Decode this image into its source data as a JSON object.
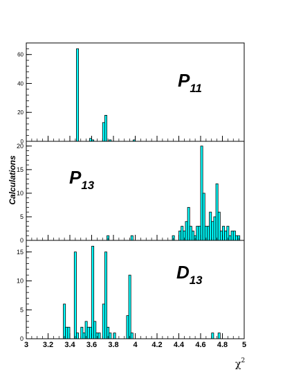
{
  "chart_data": {
    "type": "histogram",
    "xlabel": "χ",
    "xlabel_superscript": "2",
    "ylabel": "Calculations",
    "x_range": [
      3,
      5
    ],
    "bin_width": 0.02,
    "x_major_ticks": [
      3,
      3.2,
      3.4,
      3.6,
      3.8,
      4,
      4.2,
      4.4,
      4.6,
      4.8,
      5
    ],
    "x_tick_labels": [
      "3",
      "3.2",
      "3.4",
      "3.6",
      "3.8",
      "4",
      "4.2",
      "4.4",
      "4.6",
      "4.8",
      "5"
    ],
    "bar_color": "#00ffff",
    "edge_color": "#000000",
    "panels": [
      {
        "label_main": "P",
        "label_sub": "11",
        "ylim": [
          0,
          68
        ],
        "y_ticks": [
          0,
          20,
          40,
          60
        ],
        "y_tick_labels": [
          "0",
          "20",
          "40",
          "60"
        ],
        "bins": [
          {
            "x": 3.46,
            "count": 64
          },
          {
            "x": 3.58,
            "count": 2
          },
          {
            "x": 3.6,
            "count": 1
          },
          {
            "x": 3.7,
            "count": 13
          },
          {
            "x": 3.72,
            "count": 18
          },
          {
            "x": 3.76,
            "count": 1
          },
          {
            "x": 3.98,
            "count": 1
          }
        ]
      },
      {
        "label_main": "P",
        "label_sub": "13",
        "ylim": [
          0,
          21
        ],
        "y_ticks": [
          0,
          5,
          10,
          15,
          20
        ],
        "y_tick_labels": [
          "0",
          "5",
          "10",
          "15",
          "20"
        ],
        "bins": [
          {
            "x": 3.74,
            "count": 1
          },
          {
            "x": 3.96,
            "count": 1
          },
          {
            "x": 4.34,
            "count": 1
          },
          {
            "x": 4.4,
            "count": 2
          },
          {
            "x": 4.42,
            "count": 3
          },
          {
            "x": 4.44,
            "count": 2
          },
          {
            "x": 4.46,
            "count": 4
          },
          {
            "x": 4.48,
            "count": 7
          },
          {
            "x": 4.5,
            "count": 3
          },
          {
            "x": 4.52,
            "count": 2
          },
          {
            "x": 4.54,
            "count": 1
          },
          {
            "x": 4.56,
            "count": 3
          },
          {
            "x": 4.58,
            "count": 3
          },
          {
            "x": 4.6,
            "count": 20
          },
          {
            "x": 4.62,
            "count": 10
          },
          {
            "x": 4.64,
            "count": 3
          },
          {
            "x": 4.66,
            "count": 3
          },
          {
            "x": 4.68,
            "count": 6
          },
          {
            "x": 4.7,
            "count": 4
          },
          {
            "x": 4.72,
            "count": 5
          },
          {
            "x": 4.74,
            "count": 12
          },
          {
            "x": 4.76,
            "count": 6
          },
          {
            "x": 4.78,
            "count": 2
          },
          {
            "x": 4.8,
            "count": 3
          },
          {
            "x": 4.82,
            "count": 2
          },
          {
            "x": 4.84,
            "count": 3
          },
          {
            "x": 4.86,
            "count": 1
          },
          {
            "x": 4.88,
            "count": 2
          },
          {
            "x": 4.9,
            "count": 2
          },
          {
            "x": 4.92,
            "count": 1
          },
          {
            "x": 4.94,
            "count": 1
          }
        ]
      },
      {
        "label_main": "D",
        "label_sub": "13",
        "ylim": [
          0,
          17
        ],
        "y_ticks": [
          0,
          5,
          10,
          15
        ],
        "y_tick_labels": [
          "0",
          "5",
          "10",
          "15"
        ],
        "bins": [
          {
            "x": 3.34,
            "count": 6
          },
          {
            "x": 3.36,
            "count": 2
          },
          {
            "x": 3.38,
            "count": 2
          },
          {
            "x": 3.44,
            "count": 15
          },
          {
            "x": 3.46,
            "count": 1
          },
          {
            "x": 3.5,
            "count": 2
          },
          {
            "x": 3.52,
            "count": 1
          },
          {
            "x": 3.54,
            "count": 3
          },
          {
            "x": 3.56,
            "count": 2
          },
          {
            "x": 3.58,
            "count": 2
          },
          {
            "x": 3.6,
            "count": 16
          },
          {
            "x": 3.62,
            "count": 3
          },
          {
            "x": 3.64,
            "count": 1
          },
          {
            "x": 3.66,
            "count": 1
          },
          {
            "x": 3.7,
            "count": 6
          },
          {
            "x": 3.72,
            "count": 15
          },
          {
            "x": 3.74,
            "count": 2
          },
          {
            "x": 3.76,
            "count": 1
          },
          {
            "x": 3.8,
            "count": 1
          },
          {
            "x": 3.92,
            "count": 4
          },
          {
            "x": 3.94,
            "count": 11
          },
          {
            "x": 3.96,
            "count": 1
          },
          {
            "x": 4.7,
            "count": 1
          },
          {
            "x": 4.76,
            "count": 1
          }
        ]
      }
    ]
  }
}
